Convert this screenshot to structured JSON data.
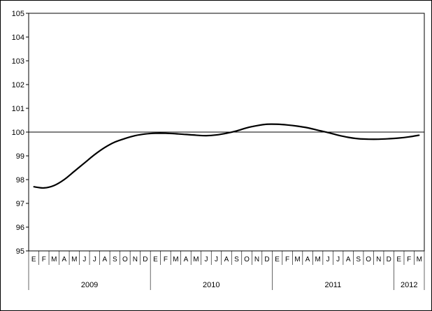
{
  "chart_data": {
    "type": "line",
    "title": "",
    "xlabel": "",
    "ylabel": "",
    "ylim": [
      95,
      105
    ],
    "yticks": [
      95,
      96,
      97,
      98,
      99,
      100,
      101,
      102,
      103,
      104,
      105
    ],
    "reference_line": 100,
    "grid": false,
    "months": [
      "E",
      "F",
      "M",
      "A",
      "M",
      "J",
      "J",
      "A",
      "S",
      "O",
      "N",
      "D",
      "E",
      "F",
      "M",
      "A",
      "M",
      "J",
      "J",
      "A",
      "S",
      "O",
      "N",
      "D",
      "E",
      "F",
      "M",
      "A",
      "M",
      "J",
      "J",
      "A",
      "S",
      "O",
      "N",
      "D",
      "E",
      "F",
      "M"
    ],
    "years": [
      {
        "label": "2009",
        "months": 12
      },
      {
        "label": "2010",
        "months": 12
      },
      {
        "label": "2011",
        "months": 12
      },
      {
        "label": "2012",
        "months": 3
      }
    ],
    "series": [
      {
        "values": [
          97.7,
          97.65,
          97.75,
          98.0,
          98.35,
          98.7,
          99.05,
          99.35,
          99.58,
          99.73,
          99.85,
          99.92,
          99.95,
          99.95,
          99.93,
          99.9,
          99.87,
          99.85,
          99.88,
          99.95,
          100.05,
          100.18,
          100.27,
          100.33,
          100.33,
          100.3,
          100.25,
          100.18,
          100.08,
          99.98,
          99.87,
          99.78,
          99.72,
          99.7,
          99.7,
          99.72,
          99.75,
          99.8,
          99.87
        ]
      }
    ],
    "colors": {
      "line": "#000000",
      "axis": "#000000",
      "reference": "#000000"
    }
  }
}
